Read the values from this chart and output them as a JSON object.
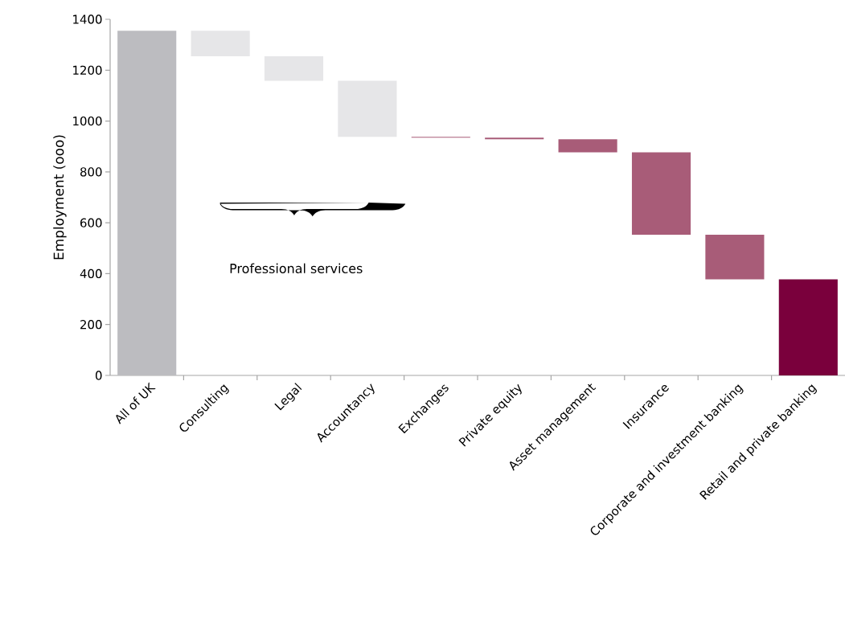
{
  "chart_data": {
    "type": "bar",
    "ylabel": "Employment (ooo)",
    "categories": [
      "All of UK",
      "Consulting",
      "Legal",
      "Accountancy",
      "Exchanges",
      "Private equity",
      "Asset management",
      "Insurance",
      "Corporate and investment banking",
      "Retail and private banking"
    ],
    "base": [
      0,
      1255,
      1158,
      938,
      935,
      928,
      877,
      553,
      378,
      0
    ],
    "values": [
      1355,
      100,
      97,
      220,
      3,
      7,
      51,
      324,
      175,
      378
    ],
    "colors": [
      "#bcbcc0",
      "#e6e6e8",
      "#e6e6e8",
      "#e6e6e8",
      "#a85c78",
      "#a85c78",
      "#a85c78",
      "#a85c78",
      "#a85c78",
      "#7a003c"
    ],
    "ylim": [
      0,
      1400
    ],
    "yticks": [
      0,
      200,
      400,
      600,
      800,
      1000,
      1200,
      1400
    ],
    "annotations": [
      "Professional services"
    ]
  }
}
